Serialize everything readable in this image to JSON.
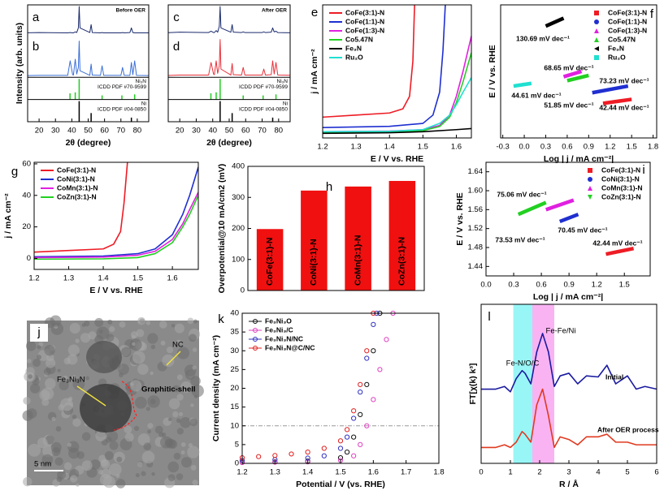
{
  "chart_data": [
    {
      "type": "xrd",
      "title": "Before OER",
      "labels": [
        "a",
        "b"
      ],
      "xlabel": "2θ (degree)",
      "ylabel": "Intensity (arb. units)",
      "xlim": [
        13,
        87
      ],
      "xticks": [
        20,
        30,
        40,
        50,
        60,
        70,
        80
      ],
      "ylim": [
        0,
        2.2
      ],
      "x": [
        10,
        20,
        37.5,
        39,
        40.5,
        41,
        42.1,
        43,
        44,
        44.5,
        45,
        51,
        51.8,
        52.5,
        57.5,
        58.5,
        59.5,
        70,
        71,
        72,
        75.5,
        76.4,
        77.3,
        78.4,
        79.5,
        90
      ],
      "series": [
        {
          "color": "#1a2a6c",
          "values": [
            1.35,
            1.36,
            1.35,
            1.36,
            1.35,
            1.35,
            1.38,
            1.36,
            1.5,
            2.15,
            1.5,
            1.36,
            1.6,
            1.36,
            1.35,
            1.36,
            1.35,
            1.35,
            1.36,
            1.35,
            1.36,
            1.5,
            1.36,
            1.35,
            1.35,
            1.35
          ]
        },
        {
          "color": "#3a6fd8",
          "values": [
            0.05,
            0.06,
            0.06,
            0.5,
            0.08,
            0.07,
            0.55,
            0.1,
            0.3,
            1.1,
            0.2,
            0.06,
            0.4,
            0.07,
            0.06,
            0.35,
            0.06,
            0.06,
            0.3,
            0.06,
            0.06,
            0.45,
            0.08,
            0.5,
            0.06,
            0.05
          ]
        }
      ],
      "references": [
        {
          "name": "Ni₃N",
          "label": "ICDD PDF #70-9599",
          "color": "#22cc22",
          "x": [
            38.9,
            42.1,
            44.5,
            58.5,
            70.6,
            78.4
          ],
          "values": [
            0.3,
            0.35,
            1,
            0.2,
            0.2,
            0.25
          ]
        },
        {
          "name": "Ni",
          "label": "ICDD PDF #04-0850",
          "color": "#000000",
          "x": [
            44.5,
            51.8,
            76.4
          ],
          "values": [
            1,
            0.42,
            0.2
          ]
        }
      ]
    },
    {
      "type": "xrd",
      "title": "After OER",
      "labels": [
        "c",
        "d"
      ],
      "xlabel": "2θ (degree)",
      "xlim": [
        13,
        87
      ],
      "xticks": [
        20,
        30,
        40,
        50,
        60,
        70,
        80
      ],
      "ylim": [
        0,
        2.2
      ],
      "x": [
        10,
        20,
        37.5,
        39,
        40.5,
        41,
        42.1,
        43,
        44,
        44.5,
        45,
        51,
        51.8,
        52.5,
        57.5,
        58.5,
        59.5,
        70,
        71,
        72,
        75.5,
        76.4,
        77.3,
        78.4,
        79.5,
        90
      ],
      "series": [
        {
          "color": "#1a2a6c",
          "values": [
            1.35,
            1.37,
            1.36,
            1.4,
            1.36,
            1.36,
            1.42,
            1.37,
            1.55,
            2.15,
            1.5,
            1.37,
            1.6,
            1.37,
            1.36,
            1.38,
            1.36,
            1.36,
            1.38,
            1.36,
            1.37,
            1.5,
            1.38,
            1.4,
            1.36,
            1.35
          ]
        },
        {
          "color": "#e8303a",
          "values": [
            0.05,
            0.07,
            0.07,
            0.45,
            0.1,
            0.08,
            0.5,
            0.12,
            0.35,
            1.15,
            0.25,
            0.07,
            0.42,
            0.08,
            0.07,
            0.3,
            0.07,
            0.07,
            0.25,
            0.07,
            0.08,
            0.5,
            0.1,
            0.45,
            0.07,
            0.06
          ]
        }
      ],
      "references": [
        {
          "name": "Ni₃N",
          "label": "ICDD PDF #70-9599",
          "color": "#22cc22",
          "x": [
            38.9,
            42.1,
            44.5,
            58.5,
            70.6,
            78.4
          ],
          "values": [
            0.3,
            0.35,
            1,
            0.2,
            0.2,
            0.25
          ]
        },
        {
          "name": "Ni",
          "label": "ICDD PDF #04-0850",
          "color": "#000000",
          "x": [
            44.5,
            51.8,
            76.4
          ],
          "values": [
            1,
            0.42,
            0.2
          ]
        }
      ]
    },
    {
      "type": "line",
      "label": "e",
      "xlabel": "E / V vs. RHE",
      "ylabel": "j / mA cm⁻²",
      "legend": "upper left",
      "xlim": [
        1.2,
        1.645
      ],
      "xticks": [
        1.2,
        1.3,
        1.4,
        1.5,
        1.6
      ],
      "ylim": [
        -2,
        62
      ],
      "series": [
        {
          "name": "CoFe(3:1)-N",
          "color": "#ee1c25",
          "x": [
            1.2,
            1.3,
            1.4,
            1.44,
            1.46,
            1.47,
            1.475
          ],
          "values": [
            8,
            9,
            10,
            12,
            18,
            35,
            62
          ]
        },
        {
          "name": "CoFe(1:1)-N",
          "color": "#1f2fd0",
          "x": [
            1.2,
            1.3,
            1.4,
            1.5,
            1.53,
            1.55,
            1.56,
            1.567
          ],
          "values": [
            3,
            3.3,
            3.6,
            5,
            9,
            20,
            40,
            62
          ]
        },
        {
          "name": "CoFe(1:3)-N",
          "color": "#e020e0",
          "x": [
            1.2,
            1.4,
            1.5,
            1.55,
            1.58,
            1.6,
            1.62,
            1.645
          ],
          "values": [
            1,
            1.3,
            2,
            4,
            9,
            18,
            30,
            47
          ]
        },
        {
          "name": "Co5.47N",
          "color": "#22d022",
          "x": [
            1.2,
            1.4,
            1.5,
            1.55,
            1.58,
            1.6,
            1.62,
            1.645
          ],
          "values": [
            0.5,
            0.8,
            1.5,
            3.5,
            8,
            15,
            25,
            39
          ]
        },
        {
          "name": "Fe₃N",
          "color": "#000000",
          "x": [
            1.2,
            1.4,
            1.5,
            1.6,
            1.645
          ],
          "values": [
            0.2,
            0.5,
            1,
            2,
            2.5
          ]
        },
        {
          "name": "Ru₂O",
          "color": "#20e0d0",
          "x": [
            1.2,
            1.4,
            1.5,
            1.55,
            1.58,
            1.6,
            1.62,
            1.645
          ],
          "values": [
            1,
            1.2,
            2,
            5,
            9,
            14,
            20,
            27
          ]
        }
      ]
    },
    {
      "type": "tafel",
      "label": "f",
      "xlabel": "Log | j / mA cm⁻²|",
      "ylabel": "E / V vs. RHE",
      "legend": "upper right",
      "xlim": [
        -0.33,
        1.85
      ],
      "xticks": [
        -0.3,
        {
          "value": 0,
          "label": "0.0"
        },
        0.3,
        0.6,
        0.9,
        1.2,
        1.5,
        1.8
      ],
      "ylim": [
        1.35,
        1.85
      ],
      "series": [
        {
          "name": "CoFe(3:1)-N",
          "color": "#ee1c25",
          "marker": "square",
          "annotation": "42.44 mV dec⁻¹",
          "x": [
            1.1,
            1.5
          ],
          "values": [
            1.48,
            1.495
          ]
        },
        {
          "name": "CoFe(1:1)-N",
          "color": "#1f2fd0",
          "marker": "circle",
          "annotation": "51.85 mV dec⁻¹",
          "x": [
            0.95,
            1.45
          ],
          "values": [
            1.52,
            1.545
          ]
        },
        {
          "name": "CoFe(1:3)-N",
          "color": "#e020e0",
          "marker": "triangle",
          "annotation": "68.65 mV dec⁻¹",
          "x": [
            0.55,
            0.8
          ],
          "values": [
            1.58,
            1.6
          ]
        },
        {
          "name": "Co5.47N",
          "color": "#22d022",
          "marker": "triangle",
          "annotation": "73.23 mV dec⁻¹",
          "x": [
            0.6,
            0.9
          ],
          "values": [
            1.565,
            1.585
          ]
        },
        {
          "name": "Fe₃N",
          "color": "#000000",
          "marker": "triangle-left",
          "annotation": "130.69 mV dec⁻¹",
          "x": [
            0.3,
            0.55
          ],
          "values": [
            1.77,
            1.8
          ]
        },
        {
          "name": "Ru₂O",
          "color": "#20e0d0",
          "marker": "square",
          "annotation": "44.61 mV dec⁻¹",
          "x": [
            -0.15,
            0.1
          ],
          "values": [
            1.545,
            1.555
          ]
        }
      ]
    },
    {
      "type": "line",
      "label": "g",
      "xlabel": "E / V vs. RHE",
      "ylabel": "j / mA cm⁻²",
      "legend": "upper left",
      "xlim": [
        1.2,
        1.675
      ],
      "xticks": [
        1.2,
        1.3,
        1.4,
        1.5,
        1.6
      ],
      "ylim": [
        -7,
        61
      ],
      "yticks": [
        0,
        20,
        40,
        60
      ],
      "series": [
        {
          "name": "CoFe(3:1)-N",
          "color": "#ee1c25",
          "x": [
            1.2,
            1.3,
            1.4,
            1.43,
            1.45,
            1.46,
            1.47
          ],
          "values": [
            4,
            5,
            6,
            9,
            17,
            35,
            61
          ]
        },
        {
          "name": "CoNi(3:1)-N",
          "color": "#1f2fd0",
          "x": [
            1.2,
            1.4,
            1.5,
            1.55,
            1.6,
            1.63,
            1.65,
            1.675
          ],
          "values": [
            1,
            1.5,
            3,
            6,
            15,
            28,
            40,
            58
          ]
        },
        {
          "name": "CoMn(3:1)-N",
          "color": "#e020e0",
          "x": [
            1.2,
            1.4,
            1.5,
            1.55,
            1.6,
            1.63,
            1.65,
            1.675
          ],
          "values": [
            0.5,
            0.8,
            2,
            4.5,
            12,
            22,
            31,
            42
          ]
        },
        {
          "name": "CoZn(3:1)-N",
          "color": "#22d022",
          "x": [
            1.2,
            1.4,
            1.5,
            1.55,
            1.6,
            1.63,
            1.65,
            1.675
          ],
          "values": [
            -0.5,
            -0.3,
            0.5,
            3,
            10,
            20,
            28,
            40
          ]
        }
      ]
    },
    {
      "type": "bar",
      "label": "h",
      "ylabel": "Overpotential@10 mA/cm2 (mV)",
      "color": "#f01010",
      "categories": [
        "CoFe(3:1)-N",
        "CoNi(3:1)-N",
        "CoMn(3:1)-N",
        "CoZn(3:1)-N"
      ],
      "values": [
        198,
        322,
        335,
        353
      ],
      "ylim": [
        0,
        400
      ],
      "yticks": [
        0,
        100,
        200,
        300,
        400
      ]
    },
    {
      "type": "tafel",
      "label": "i",
      "xlabel": "Log | j / mA cm⁻²|",
      "ylabel": "E / V vs. RHE",
      "legend": "upper right",
      "xlim": [
        0,
        1.78
      ],
      "xticks": [
        {
          "value": 0,
          "label": "0.0"
        },
        0.3,
        0.6,
        0.9,
        1.2,
        1.5
      ],
      "ylim": [
        1.42,
        1.66
      ],
      "yticks": [
        1.44,
        1.48,
        1.52,
        1.56,
        {
          "value": 1.6,
          "label": "1.60"
        },
        1.64
      ],
      "series": [
        {
          "name": "CoFe(3:1)-N",
          "color": "#ee1c25",
          "marker": "square",
          "annotation": "42.44 mV dec⁻¹",
          "x": [
            1.3,
            1.6
          ],
          "values": [
            1.466,
            1.478
          ]
        },
        {
          "name": "CoNi(3:1)-N",
          "color": "#1f2fd0",
          "marker": "circle",
          "annotation": "70.45 mV dec⁻¹",
          "x": [
            0.8,
            1.0
          ],
          "values": [
            1.535,
            1.55
          ]
        },
        {
          "name": "CoMn(3:1)-N",
          "color": "#e020e0",
          "marker": "triangle",
          "annotation": "73.53 mV dec⁻¹",
          "x": [
            0.65,
            0.95
          ],
          "values": [
            1.56,
            1.58
          ]
        },
        {
          "name": "CoZn(3:1)-N",
          "color": "#22d022",
          "marker": "triangle-down",
          "annotation": "75.06 mV dec⁻¹",
          "x": [
            0.35,
            0.65
          ],
          "values": [
            1.55,
            1.575
          ]
        }
      ]
    },
    {
      "type": "image",
      "label": "j",
      "annotations": [
        "NC",
        "Fe₃Ni₃N",
        "Graphitic-shell"
      ],
      "scale_bar": "5 nm"
    },
    {
      "type": "scatter",
      "label": "k",
      "xlabel": "Potential / V (vs. RHE)",
      "ylabel": "Current density (mA cm⁻²)",
      "legend": "upper left",
      "xlim": [
        1.2,
        1.8
      ],
      "xticks": [
        1.2,
        1.3,
        1.4,
        1.5,
        1.6,
        1.7,
        1.8
      ],
      "ylim": [
        0,
        40
      ],
      "yticks": [
        0,
        5,
        10,
        15,
        20,
        25,
        30,
        35,
        40
      ],
      "reference_line": 10,
      "series": [
        {
          "name": "Fe₃Ni₃O",
          "color": "#111111",
          "x": [
            1.2,
            1.3,
            1.4,
            1.5,
            1.52,
            1.54,
            1.56,
            1.58,
            1.6,
            1.62
          ],
          "values": [
            0.3,
            0.4,
            0.6,
            1.5,
            3,
            7,
            13,
            21,
            30,
            40
          ]
        },
        {
          "name": "Fe₃Ni₃/C",
          "color": "#e040c0",
          "x": [
            1.2,
            1.3,
            1.4,
            1.5,
            1.54,
            1.56,
            1.58,
            1.6,
            1.62,
            1.64,
            1.66
          ],
          "values": [
            0.2,
            0.3,
            0.4,
            0.8,
            2,
            5,
            10,
            17,
            25,
            33,
            40
          ]
        },
        {
          "name": "Fe₃Ni₃N/NC",
          "color": "#3030c0",
          "x": [
            1.2,
            1.3,
            1.4,
            1.45,
            1.5,
            1.52,
            1.54,
            1.56,
            1.58,
            1.6,
            1.61
          ],
          "values": [
            0.8,
            1,
            1.4,
            2,
            4,
            7,
            12,
            19,
            28,
            37,
            40
          ]
        },
        {
          "name": "Fe₃Ni₃N@C/NC",
          "color": "#e02020",
          "x": [
            1.2,
            1.25,
            1.3,
            1.35,
            1.4,
            1.45,
            1.5,
            1.52,
            1.54,
            1.56,
            1.58,
            1.6
          ],
          "values": [
            1.5,
            1.8,
            2.1,
            2.5,
            3,
            4,
            6,
            9,
            14,
            21,
            30,
            40
          ]
        }
      ]
    },
    {
      "type": "line",
      "label": "l",
      "xlabel": "R / Å",
      "ylabel": "FT[χ(k) k³]",
      "xlim": [
        0,
        6
      ],
      "xticks": [
        0,
        1,
        2,
        3,
        4,
        5,
        6
      ],
      "ylim": [
        0,
        30
      ],
      "bands": [
        {
          "range": [
            1.1,
            1.75
          ],
          "color": "#80f4f4"
        },
        {
          "range": [
            1.75,
            2.5
          ],
          "color": "#f7a0f0"
        }
      ],
      "annotations": [
        "Fe-N/O/C",
        "Fe-Fe/Ni"
      ],
      "series": [
        {
          "name": "Initial",
          "color": "#1a1aa0",
          "x": [
            0,
            0.5,
            0.8,
            1.0,
            1.2,
            1.4,
            1.5,
            1.7,
            1.9,
            2.1,
            2.3,
            2.5,
            2.7,
            3.0,
            3.3,
            3.6,
            4.0,
            4.3,
            4.6,
            5.0,
            5.3,
            5.6,
            6.0
          ],
          "values": [
            14,
            14,
            14.5,
            13.5,
            16,
            17.5,
            17,
            15,
            21,
            24.5,
            21,
            14.5,
            16.5,
            17,
            15,
            16.5,
            16.3,
            18.5,
            15,
            16.5,
            14,
            14.5,
            14
          ]
        },
        {
          "name": "After OER process",
          "color": "#e03a20",
          "x": [
            0,
            0.5,
            0.8,
            1.0,
            1.2,
            1.4,
            1.5,
            1.7,
            1.9,
            2.1,
            2.3,
            2.5,
            2.7,
            3.0,
            3.3,
            3.6,
            4.0,
            4.3,
            4.6,
            5.0,
            5.3,
            5.6,
            6.0
          ],
          "values": [
            3,
            3,
            3.5,
            3,
            4,
            6,
            5.5,
            4,
            11,
            14,
            9,
            3,
            5,
            4.5,
            3.5,
            5,
            5,
            5.5,
            4,
            4,
            3.5,
            3.5,
            3.5
          ]
        }
      ]
    }
  ]
}
